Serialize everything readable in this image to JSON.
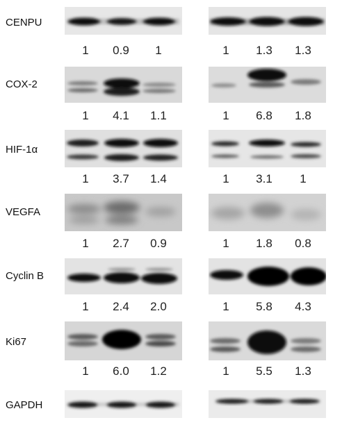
{
  "rows": [
    {
      "label": "CENPU",
      "left": [
        "1",
        "0.9",
        "1"
      ],
      "right": [
        "1",
        "1.3",
        "1.3"
      ]
    },
    {
      "label": "COX-2",
      "left": [
        "1",
        "4.1",
        "1.1"
      ],
      "right": [
        "1",
        "6.8",
        "1.8"
      ]
    },
    {
      "label": "HIF-1α",
      "left": [
        "1",
        "3.7",
        "1.4"
      ],
      "right": [
        "1",
        "3.1",
        "1"
      ]
    },
    {
      "label": "VEGFA",
      "left": [
        "1",
        "2.7",
        "0.9"
      ],
      "right": [
        "1",
        "1.8",
        "0.8"
      ]
    },
    {
      "label": "Cyclin B",
      "left": [
        "1",
        "2.4",
        "2.0"
      ],
      "right": [
        "1",
        "5.8",
        "4.3"
      ]
    },
    {
      "label": "Ki67",
      "left": [
        "1",
        "6.0",
        "1.2"
      ],
      "right": [
        "1",
        "5.5",
        "1.3"
      ]
    },
    {
      "label": "GAPDH"
    }
  ]
}
